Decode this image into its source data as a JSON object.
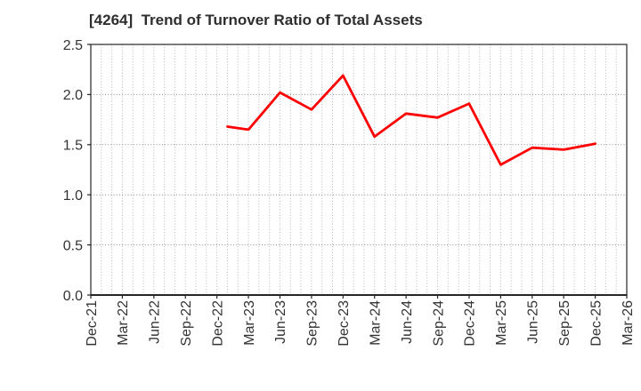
{
  "page": {
    "background": "#ffffff"
  },
  "chart_data": {
    "type": "line",
    "title": "[4264]  Trend of Turnover Ratio of Total Assets",
    "x_axis": {
      "tick_labels": [
        "Dec-21",
        "Mar-22",
        "Jun-22",
        "Sep-22",
        "Dec-22",
        "Mar-23",
        "Jun-23",
        "Sep-23",
        "Dec-23",
        "Mar-24",
        "Jun-24",
        "Sep-24",
        "Dec-24",
        "Mar-25",
        "Jun-25",
        "Sep-25",
        "Dec-25",
        "Mar-26"
      ],
      "tick_month_index": [
        0,
        3,
        6,
        9,
        12,
        15,
        18,
        21,
        24,
        27,
        30,
        33,
        36,
        39,
        42,
        45,
        48,
        51
      ],
      "range_months": [
        0,
        51
      ],
      "minor_grid_month_step": 1
    },
    "y_axis": {
      "range": [
        0.0,
        2.5
      ],
      "tick_labels": [
        "0.0",
        "0.5",
        "1.0",
        "1.5",
        "2.0",
        "2.5"
      ],
      "tick_values": [
        0.0,
        0.5,
        1.0,
        1.5,
        2.0,
        2.5
      ]
    },
    "series": [
      {
        "name": "Turnover Ratio of Total Assets",
        "color": "#ff0000",
        "points": [
          {
            "date": "Jan-23",
            "month_index": 13,
            "value": 1.68
          },
          {
            "date": "Mar-23",
            "month_index": 15,
            "value": 1.65
          },
          {
            "date": "Jun-23",
            "month_index": 18,
            "value": 2.02
          },
          {
            "date": "Sep-23",
            "month_index": 21,
            "value": 1.85
          },
          {
            "date": "Dec-23",
            "month_index": 24,
            "value": 2.19
          },
          {
            "date": "Mar-24",
            "month_index": 27,
            "value": 1.58
          },
          {
            "date": "Jun-24",
            "month_index": 30,
            "value": 1.81
          },
          {
            "date": "Sep-24",
            "month_index": 33,
            "value": 1.77
          },
          {
            "date": "Dec-24",
            "month_index": 36,
            "value": 1.91
          },
          {
            "date": "Mar-25",
            "month_index": 39,
            "value": 1.3
          },
          {
            "date": "Jun-25",
            "month_index": 42,
            "value": 1.47
          },
          {
            "date": "Sep-25",
            "month_index": 45,
            "value": 1.45
          },
          {
            "date": "Dec-25",
            "month_index": 48,
            "value": 1.51
          }
        ]
      }
    ],
    "grid": {
      "horizontal": true,
      "vertical": true,
      "style": "dotted"
    },
    "legend": "none",
    "colors": {
      "line": "#ff0000",
      "grid_vertical": "#b3b3b3",
      "grid_horizontal": "#8c8c8c",
      "spine": "#262626",
      "tick_label": "#333333",
      "title": "#2e2e2e"
    }
  }
}
